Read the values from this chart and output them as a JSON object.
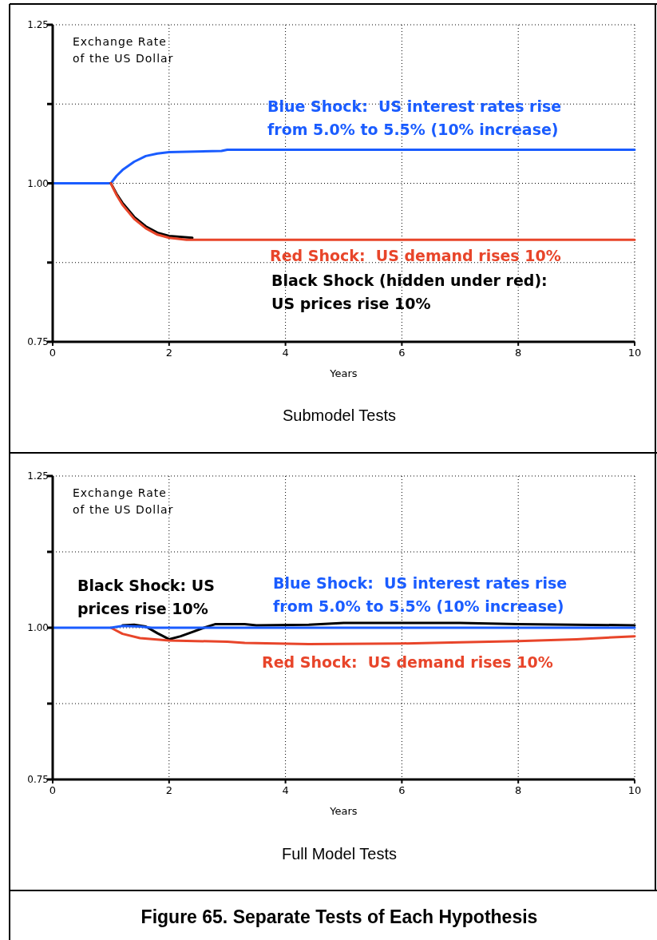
{
  "chart_data": [
    {
      "type": "line",
      "title": "Submodel Tests",
      "xlabel": "Years",
      "ylabel": "Exchange Rate\nof the US Dollar",
      "xlim": [
        0,
        10
      ],
      "xticks": [
        0,
        2,
        4,
        6,
        8,
        10
      ],
      "ylim": [
        0.75,
        1.25
      ],
      "yticks": [
        {
          "value": 0.75,
          "label": "0.75"
        },
        {
          "value": 0.875,
          "label": null
        },
        {
          "value": 1,
          "label": "1.00"
        },
        {
          "value": 1.125,
          "label": null
        },
        {
          "value": 1.25,
          "label": "1.25"
        }
      ],
      "grid": true,
      "line_style": "solid",
      "series": [
        {
          "name": "Blue Shock:  US interest rates rise\nfrom 5.0% to 5.5% (10% increase)",
          "color": "#1a5cff",
          "x": [
            0,
            1,
            1.1,
            1.2,
            1.4,
            1.6,
            1.8,
            2,
            2.9,
            3,
            10
          ],
          "values": [
            1,
            1,
            1.012,
            1.021,
            1.034,
            1.043,
            1.047,
            1.049,
            1.051,
            1.053,
            1.053
          ]
        },
        {
          "name": "Black Shock (hidden under red):\nUS prices rise 10%",
          "color": "#000000",
          "x": [
            1,
            1.1,
            1.2,
            1.4,
            1.6,
            1.8,
            2,
            2.4
          ],
          "values": [
            1,
            0.983,
            0.969,
            0.947,
            0.932,
            0.922,
            0.917,
            0.914
          ]
        },
        {
          "name": "Red Shock:  US demand rises 10%",
          "color": "#e8452a",
          "x": [
            1,
            1.1,
            1.2,
            1.4,
            1.6,
            1.8,
            2,
            2.3,
            10
          ],
          "values": [
            1,
            0.981,
            0.966,
            0.944,
            0.929,
            0.919,
            0.914,
            0.911,
            0.911
          ]
        }
      ]
    },
    {
      "type": "line",
      "title": "Full Model Tests",
      "xlabel": "Years",
      "ylabel": "Exchange Rate\nof the US Dollar",
      "xlim": [
        0,
        10
      ],
      "xticks": [
        0,
        2,
        4,
        6,
        8,
        10
      ],
      "ylim": [
        0.75,
        1.25
      ],
      "yticks": [
        {
          "value": 0.75,
          "label": "0.75"
        },
        {
          "value": 0.875,
          "label": null
        },
        {
          "value": 1,
          "label": "1.00"
        },
        {
          "value": 1.125,
          "label": null
        },
        {
          "value": 1.25,
          "label": "1.25"
        }
      ],
      "grid": true,
      "line_style": "solid",
      "annotations": [
        "Figure 65.  Separate Tests of Each Hypothesis"
      ],
      "series": [
        {
          "name": "Black Shock: US\nprices rise 10%",
          "color": "#000000",
          "x": [
            1.2,
            1.4,
            1.6,
            1.8,
            2,
            2.2,
            2.4,
            2.6,
            2.8,
            3.3,
            3.5,
            4.4,
            5,
            7,
            8,
            10
          ],
          "values": [
            1.004,
            1.005,
            1.002,
            0.991,
            0.981,
            0.986,
            0.993,
            1,
            1.006,
            1.006,
            1.004,
            1.005,
            1.008,
            1.008,
            1.006,
            1.004
          ]
        },
        {
          "name": "Red Shock:  US demand rises 10%",
          "color": "#e8452a",
          "x": [
            1,
            1.2,
            1.5,
            2,
            3,
            3.3,
            4.4,
            6,
            7,
            8,
            9,
            10
          ],
          "values": [
            1,
            0.99,
            0.983,
            0.979,
            0.977,
            0.975,
            0.973,
            0.974,
            0.976,
            0.978,
            0.981,
            0.986
          ]
        },
        {
          "name": "Blue Shock:  US interest rates rise\nfrom 5.0% to 5.5% (10% increase)",
          "color": "#1a5cff",
          "x": [
            0,
            1,
            1.2,
            1.5,
            1.7,
            10
          ],
          "values": [
            1,
            1,
            1.003,
            1.002,
            1,
            1
          ]
        }
      ]
    }
  ]
}
